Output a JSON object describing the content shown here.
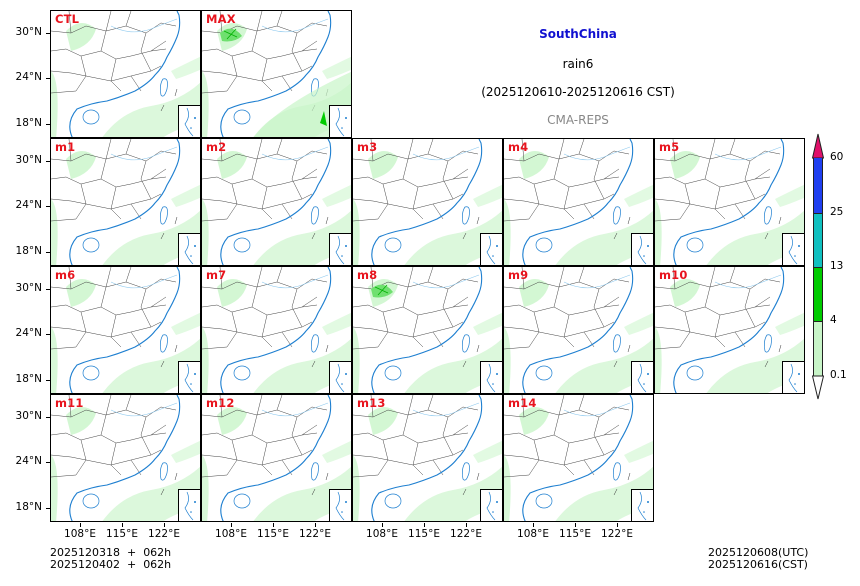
{
  "title": {
    "region": "SouthChina",
    "variable": "rain6",
    "period": "(2025120610-2025120616 CST)",
    "source": "CMA-REPS",
    "region_color": "#1010d0",
    "source_color": "#888888"
  },
  "panels": [
    {
      "label": "CTL",
      "row": 0,
      "col": 0,
      "intensity": 1
    },
    {
      "label": "MAX",
      "row": 0,
      "col": 1,
      "intensity": 3
    },
    {
      "label": "m1",
      "row": 1,
      "col": 0,
      "intensity": 1
    },
    {
      "label": "m2",
      "row": 1,
      "col": 1,
      "intensity": 1
    },
    {
      "label": "m3",
      "row": 1,
      "col": 2,
      "intensity": 1
    },
    {
      "label": "m4",
      "row": 1,
      "col": 3,
      "intensity": 1
    },
    {
      "label": "m5",
      "row": 1,
      "col": 4,
      "intensity": 1
    },
    {
      "label": "m6",
      "row": 2,
      "col": 0,
      "intensity": 1
    },
    {
      "label": "m7",
      "row": 2,
      "col": 1,
      "intensity": 1
    },
    {
      "label": "m8",
      "row": 2,
      "col": 2,
      "intensity": 2
    },
    {
      "label": "m9",
      "row": 2,
      "col": 3,
      "intensity": 1
    },
    {
      "label": "m10",
      "row": 2,
      "col": 4,
      "intensity": 1
    },
    {
      "label": "m11",
      "row": 3,
      "col": 0,
      "intensity": 1
    },
    {
      "label": "m12",
      "row": 3,
      "col": 1,
      "intensity": 1
    },
    {
      "label": "m13",
      "row": 3,
      "col": 2,
      "intensity": 1
    },
    {
      "label": "m14",
      "row": 3,
      "col": 3,
      "intensity": 1
    }
  ],
  "axes": {
    "y_ticks": [
      "30°N",
      "24°N",
      "18°N"
    ],
    "x_ticks": [
      "108°E",
      "115°E",
      "122°E"
    ]
  },
  "colorbar": {
    "levels": [
      "0.1",
      "4",
      "13",
      "25",
      "60"
    ],
    "colors": [
      "#c8f5c8",
      "#00cc00",
      "#10c0c0",
      "#2040f0"
    ],
    "under_color": "#ffffff",
    "over_color": "#e0106a"
  },
  "footer": {
    "init_line1": "2025120318  +  062h",
    "init_line2": "2025120402  +  062h",
    "valid_utc": "2025120608(UTC)",
    "valid_cst": "2025120616(CST)"
  },
  "chart_data": {
    "type": "heatmap",
    "title": "SouthChina rain6 (2025120610-2025120616 CST)",
    "subtitle": "CMA-REPS",
    "panels": [
      "CTL",
      "MAX",
      "m1",
      "m2",
      "m3",
      "m4",
      "m5",
      "m6",
      "m7",
      "m8",
      "m9",
      "m10",
      "m11",
      "m12",
      "m13",
      "m14"
    ],
    "xlabel": "",
    "ylabel": "",
    "x_ticks": [
      "108°E",
      "115°E",
      "122°E"
    ],
    "y_ticks": [
      "30°N",
      "24°N",
      "18°N"
    ],
    "colorbar_levels": [
      0.1,
      4,
      13,
      25,
      60
    ],
    "colorbar_colors": [
      "#c8f5c8",
      "#00cc00",
      "#10c0c0",
      "#2040f0"
    ],
    "extend": "both",
    "legend_position": "right",
    "grid": false
  }
}
